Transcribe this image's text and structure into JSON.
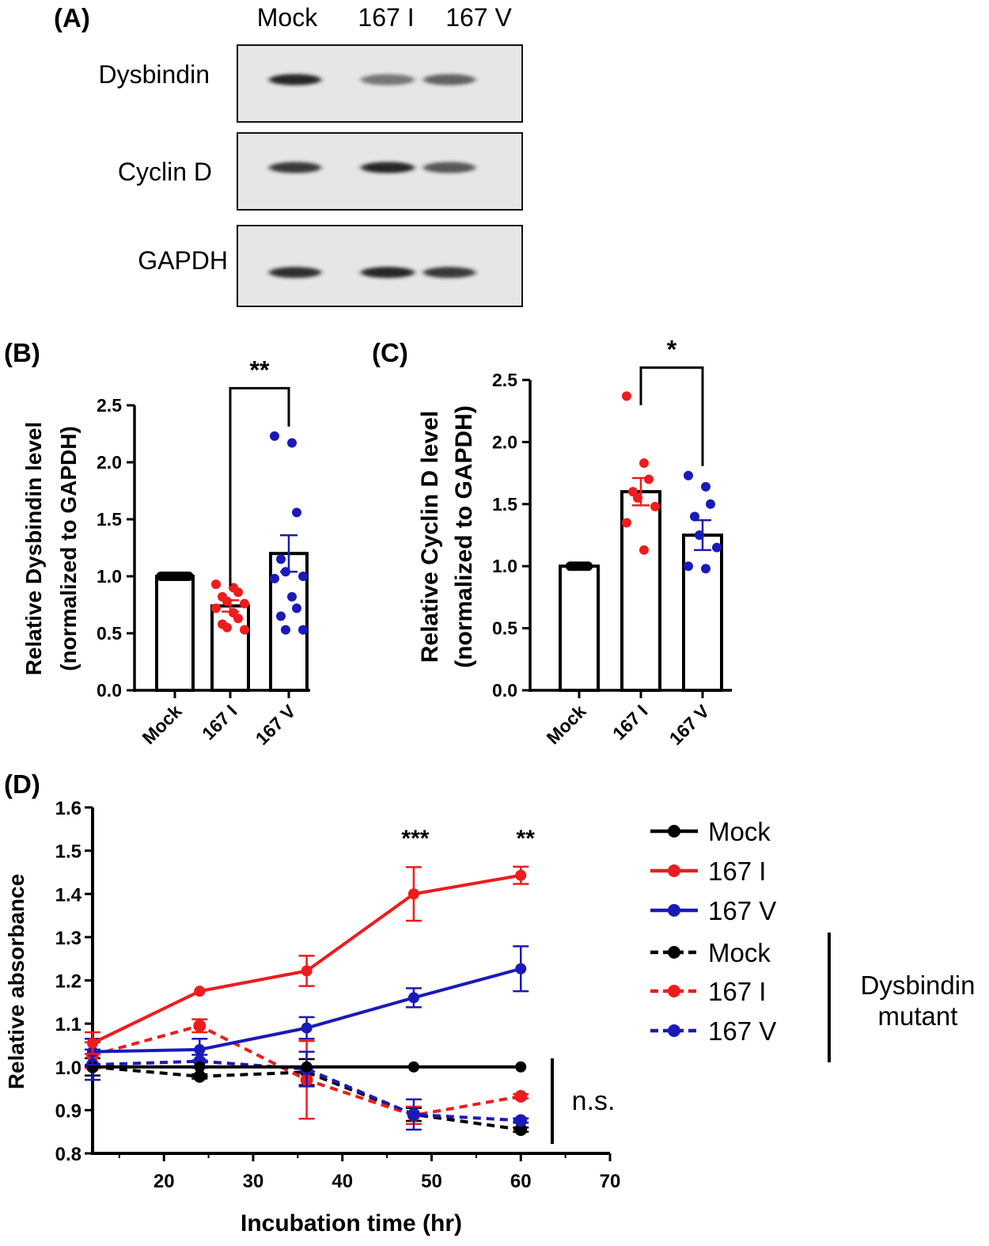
{
  "colors": {
    "mock": "#000000",
    "i167": "#ee1c1c",
    "v167": "#1a1ab8",
    "blot_bg": "#e6e6e6",
    "band": "#1a1a1a"
  },
  "panel_a": {
    "label": "(A)",
    "lanes": [
      "Mock",
      "167 I",
      "167 V"
    ],
    "blots": [
      {
        "name": "Dysbindin",
        "band_intensity": [
          0.95,
          0.55,
          0.65
        ]
      },
      {
        "name": "Cyclin D",
        "band_intensity": [
          0.85,
          0.95,
          0.7
        ]
      },
      {
        "name": "GAPDH",
        "band_intensity": [
          0.9,
          0.95,
          0.85
        ]
      }
    ]
  },
  "chart_data": [
    {
      "panel": "(B)",
      "type": "bar",
      "ylabel_line1": "Relative Dysbindin level",
      "ylabel_line2": "(normalized to GAPDH)",
      "categories": [
        "Mock",
        "167 I",
        "167 V"
      ],
      "values": [
        1.0,
        0.74,
        1.2
      ],
      "sem": [
        0.0,
        0.05,
        0.16
      ],
      "ylim": [
        0,
        2.5
      ],
      "yticks": [
        0.0,
        0.5,
        1.0,
        1.5,
        2.0,
        2.5
      ],
      "ytick_labels": [
        "0.0",
        "0.5",
        "1.0",
        "1.5",
        "2.0",
        "2.5"
      ],
      "points": [
        [
          1.0,
          1.0,
          1.0,
          1.0,
          1.0,
          1.0,
          1.0,
          1.0,
          1.0,
          1.0,
          1.0,
          1.0
        ],
        [
          0.93,
          0.9,
          0.86,
          0.82,
          0.78,
          0.76,
          0.72,
          0.68,
          0.63,
          0.58,
          0.55,
          0.53
        ],
        [
          2.23,
          2.17,
          1.56,
          1.15,
          1.04,
          1.0,
          0.98,
          0.82,
          0.72,
          0.65,
          0.53,
          0.53
        ]
      ],
      "point_colors": [
        "mock",
        "i167",
        "v167"
      ],
      "significance": {
        "between": [
          1,
          2
        ],
        "label": "**",
        "y": 2.65
      }
    },
    {
      "panel": "(C)",
      "type": "bar",
      "ylabel_line1": "Relative Cyclin D level",
      "ylabel_line2": "(normalized to GAPDH)",
      "categories": [
        "Mock",
        "167 I",
        "167 V"
      ],
      "values": [
        1.0,
        1.6,
        1.25
      ],
      "sem": [
        0.0,
        0.11,
        0.12
      ],
      "ylim": [
        0,
        2.5
      ],
      "yticks": [
        0.0,
        0.5,
        1.0,
        1.5,
        2.0,
        2.5
      ],
      "ytick_labels": [
        "0.0",
        "0.5",
        "1.0",
        "1.5",
        "2.0",
        "2.5"
      ],
      "points": [
        [
          1.0,
          1.0,
          1.0,
          1.0,
          1.0,
          1.0,
          1.0,
          1.0
        ],
        [
          2.37,
          1.83,
          1.7,
          1.6,
          1.55,
          1.48,
          1.35,
          1.13
        ],
        [
          1.73,
          1.64,
          1.5,
          1.4,
          1.25,
          1.15,
          1.0,
          0.98
        ]
      ],
      "point_colors": [
        "mock",
        "i167",
        "v167"
      ],
      "significance": {
        "between": [
          1,
          2
        ],
        "label": "*",
        "y": 2.6
      }
    },
    {
      "panel": "(D)",
      "type": "line",
      "xlabel": "Incubation time (hr)",
      "ylabel": "Relative absorbance",
      "xlim": [
        12,
        70
      ],
      "ylim": [
        0.8,
        1.6
      ],
      "xticks": [
        20,
        30,
        40,
        50,
        60,
        70
      ],
      "xtick_labels": [
        "20",
        "30",
        "40",
        "50",
        "60",
        "70"
      ],
      "yticks": [
        0.8,
        0.9,
        1.0,
        1.1,
        1.2,
        1.3,
        1.4,
        1.5,
        1.6
      ],
      "ytick_labels": [
        "0.8",
        "0.9",
        "1.0",
        "1.1",
        "1.2",
        "1.3",
        "1.4",
        "1.5",
        "1.6"
      ],
      "x": [
        12,
        24,
        36,
        48,
        60
      ],
      "series": [
        {
          "name": "Mock",
          "color": "mock",
          "dashed": false,
          "values": [
            1.0,
            1.0,
            1.0,
            1.0,
            1.0
          ],
          "err": [
            0,
            0,
            0,
            0,
            0
          ]
        },
        {
          "name": "167 I",
          "color": "i167",
          "dashed": false,
          "values": [
            1.055,
            1.175,
            1.222,
            1.4,
            1.443
          ],
          "err": [
            0.025,
            0.0,
            0.035,
            0.062,
            0.02
          ]
        },
        {
          "name": "167 V",
          "color": "v167",
          "dashed": false,
          "values": [
            1.035,
            1.04,
            1.09,
            1.16,
            1.227
          ],
          "err": [
            0.03,
            0.025,
            0.025,
            0.022,
            0.052
          ]
        },
        {
          "name": "Mock",
          "color": "mock",
          "dashed": true,
          "values": [
            1.0,
            0.978,
            0.988,
            0.89,
            0.855
          ],
          "err": [
            0.02,
            0.005,
            0.03,
            0.015,
            0.005
          ]
        },
        {
          "name": "167 I",
          "color": "i167",
          "dashed": true,
          "values": [
            1.027,
            1.095,
            0.97,
            0.888,
            0.932
          ],
          "err": [
            0.03,
            0.015,
            0.09,
            0.02,
            0.005
          ]
        },
        {
          "name": "167 V",
          "color": "v167",
          "dashed": true,
          "values": [
            1.005,
            1.013,
            0.995,
            0.89,
            0.876
          ],
          "err": [
            0.035,
            0.015,
            0.04,
            0.035,
            0.005
          ]
        }
      ],
      "annotations": [
        {
          "x": 48,
          "y": 1.54,
          "text": "***"
        },
        {
          "x": 60,
          "y": 1.54,
          "text": "**"
        }
      ],
      "ns_label": "n.s.",
      "legend_group_label_line1": "Dysbindin",
      "legend_group_label_line2": "mutant"
    }
  ]
}
